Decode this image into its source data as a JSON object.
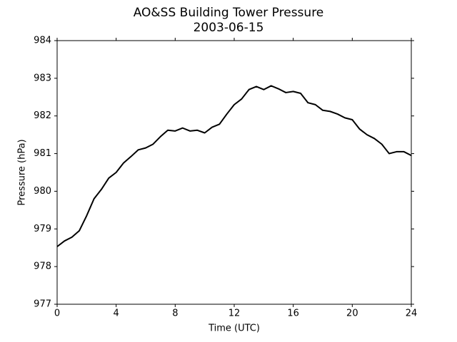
{
  "chart_data": {
    "type": "line",
    "title": "AO&SS Building Tower Pressure",
    "subtitle": "2003-06-15",
    "x_label": "Time (UTC)",
    "y_label": "Pressure (hPa)",
    "x": [
      0,
      0.5,
      1,
      1.5,
      2,
      2.5,
      3,
      3.5,
      4,
      4.5,
      5,
      5.5,
      6,
      6.5,
      7,
      7.5,
      8,
      8.5,
      9,
      9.5,
      10,
      10.5,
      11,
      11.5,
      12,
      12.5,
      13,
      13.5,
      14,
      14.5,
      15,
      15.5,
      16,
      16.5,
      17,
      17.5,
      18,
      18.5,
      19,
      19.5,
      20,
      20.5,
      21,
      21.5,
      22,
      22.5,
      23,
      23.5,
      24
    ],
    "series": [
      {
        "color": "#000000",
        "values": [
          978.53,
          978.68,
          978.78,
          978.95,
          979.35,
          979.8,
          980.05,
          980.35,
          980.5,
          980.75,
          980.92,
          981.1,
          981.15,
          981.25,
          981.45,
          981.62,
          981.6,
          981.68,
          981.6,
          981.62,
          981.55,
          981.7,
          981.78,
          982.05,
          982.3,
          982.45,
          982.7,
          982.78,
          982.7,
          982.8,
          982.72,
          982.62,
          982.65,
          982.6,
          982.35,
          982.3,
          982.15,
          982.12,
          982.05,
          981.95,
          981.9,
          981.65,
          981.5,
          981.4,
          981.25,
          981.0,
          981.05,
          981.05,
          980.95
        ]
      }
    ],
    "xlim": [
      0,
      24
    ],
    "xticks": [
      0,
      4,
      8,
      12,
      16,
      20,
      24
    ],
    "ylim": [
      977,
      984
    ],
    "yticks": [
      977,
      978,
      979,
      980,
      981,
      982,
      983,
      984
    ]
  }
}
